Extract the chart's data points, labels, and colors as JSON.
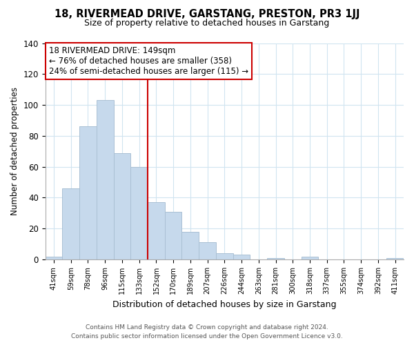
{
  "title": "18, RIVERMEAD DRIVE, GARSTANG, PRESTON, PR3 1JJ",
  "subtitle": "Size of property relative to detached houses in Garstang",
  "xlabel": "Distribution of detached houses by size in Garstang",
  "ylabel": "Number of detached properties",
  "categories": [
    "41sqm",
    "59sqm",
    "78sqm",
    "96sqm",
    "115sqm",
    "133sqm",
    "152sqm",
    "170sqm",
    "189sqm",
    "207sqm",
    "226sqm",
    "244sqm",
    "263sqm",
    "281sqm",
    "300sqm",
    "318sqm",
    "337sqm",
    "355sqm",
    "374sqm",
    "392sqm",
    "411sqm"
  ],
  "values": [
    2,
    46,
    86,
    103,
    69,
    60,
    37,
    31,
    18,
    11,
    4,
    3,
    0,
    1,
    0,
    2,
    0,
    0,
    0,
    0,
    1
  ],
  "bar_color": "#c6d9ec",
  "bar_edge_color": "#aac0d4",
  "vline_color": "#cc0000",
  "ylim": [
    0,
    140
  ],
  "yticks": [
    0,
    20,
    40,
    60,
    80,
    100,
    120,
    140
  ],
  "annotation_line1": "18 RIVERMEAD DRIVE: 149sqm",
  "annotation_line2": "← 76% of detached houses are smaller (358)",
  "annotation_line3": "24% of semi-detached houses are larger (115) →",
  "annotation_box_edge": "#cc0000",
  "grid_color": "#d0e4f0",
  "background_color": "#ffffff",
  "footer_line1": "Contains HM Land Registry data © Crown copyright and database right 2024.",
  "footer_line2": "Contains public sector information licensed under the Open Government Licence v3.0."
}
